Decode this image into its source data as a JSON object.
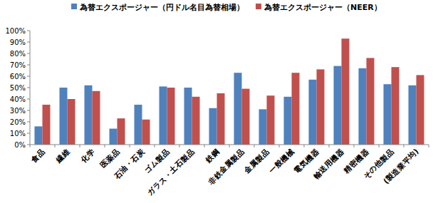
{
  "chart_data": {
    "type": "bar",
    "categories": [
      "食品",
      "繊維",
      "化学",
      "医薬品",
      "石油・石炭",
      "ゴム製品",
      "ガラス・土石製品",
      "鉄鋼",
      "非鉄金属製品",
      "金属製品",
      "一般機械",
      "電気機器",
      "輸送用機器",
      "精密機器",
      "その他製品",
      "(製造業平均)"
    ],
    "series": [
      {
        "name": "為替エクスポージャー（円ドル名目為替相場）",
        "color": "#4f81bd",
        "values": [
          16,
          50,
          52,
          14,
          35,
          51,
          50,
          32,
          63,
          31,
          42,
          57,
          69,
          67,
          53,
          52
        ]
      },
      {
        "name": "為替エクスポージャー（NEER）",
        "color": "#c0504d",
        "values": [
          35,
          40,
          47,
          23,
          22,
          50,
          42,
          45,
          49,
          43,
          63,
          66,
          93,
          76,
          68,
          61
        ]
      }
    ],
    "ylim": [
      0,
      100
    ],
    "yticks": [
      {
        "value": 0,
        "label": "0%"
      },
      {
        "value": 10,
        "label": "10%"
      },
      {
        "value": 20,
        "label": "20%"
      },
      {
        "value": 30,
        "label": "30%"
      },
      {
        "value": 40,
        "label": "40%"
      },
      {
        "value": 50,
        "label": "50%"
      },
      {
        "value": 60,
        "label": "60%"
      },
      {
        "value": 70,
        "label": "70%"
      },
      {
        "value": 80,
        "label": "80%"
      },
      {
        "value": 90,
        "label": "90%"
      },
      {
        "value": 100,
        "label": "100%"
      }
    ],
    "grid": false,
    "legend": "top"
  }
}
